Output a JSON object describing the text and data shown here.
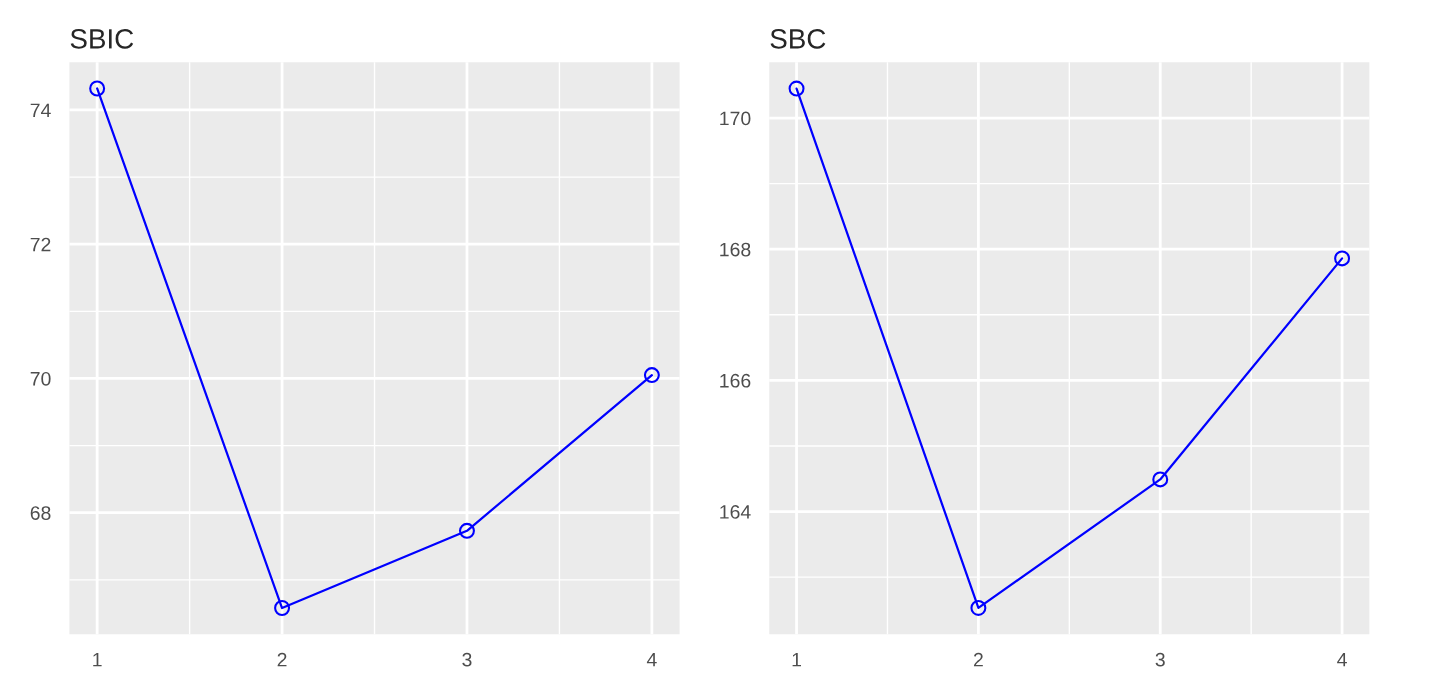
{
  "chart_data": [
    {
      "type": "line",
      "title": "SBIC",
      "x": [
        1,
        2,
        3,
        4
      ],
      "series": [
        {
          "color": "#0000ff",
          "values": [
            74.32,
            66.58,
            67.73,
            70.05
          ]
        }
      ],
      "marker": "circle",
      "line_style": "solid",
      "grid": true,
      "xlim": [
        0.85,
        4.15
      ],
      "xticks": [
        1,
        {
          "value": 1.5,
          "label": null
        },
        2,
        {
          "value": 2.5,
          "label": null
        },
        3,
        {
          "value": 3.5,
          "label": null
        },
        4
      ],
      "ylim": [
        66.19,
        74.71
      ],
      "yticks": [
        {
          "value": 67,
          "label": null
        },
        68,
        {
          "value": 69,
          "label": null
        },
        70,
        {
          "value": 71,
          "label": null
        },
        72,
        {
          "value": 73,
          "label": null
        },
        74
      ]
    },
    {
      "type": "line",
      "title": "SBC",
      "x": [
        1,
        2,
        3,
        4
      ],
      "series": [
        {
          "color": "#0000ff",
          "values": [
            170.45,
            162.53,
            164.49,
            167.86
          ]
        }
      ],
      "marker": "circle",
      "line_style": "solid",
      "grid": true,
      "xlim": [
        0.85,
        4.15
      ],
      "xticks": [
        1,
        {
          "value": 1.5,
          "label": null
        },
        2,
        {
          "value": 2.5,
          "label": null
        },
        3,
        {
          "value": 3.5,
          "label": null
        },
        4
      ],
      "ylim": [
        162.13,
        170.85
      ],
      "yticks": [
        {
          "value": 163,
          "label": null
        },
        164,
        {
          "value": 165,
          "label": null
        },
        166,
        {
          "value": 167,
          "label": null
        },
        168,
        {
          "value": 169,
          "label": null
        },
        170
      ]
    }
  ]
}
